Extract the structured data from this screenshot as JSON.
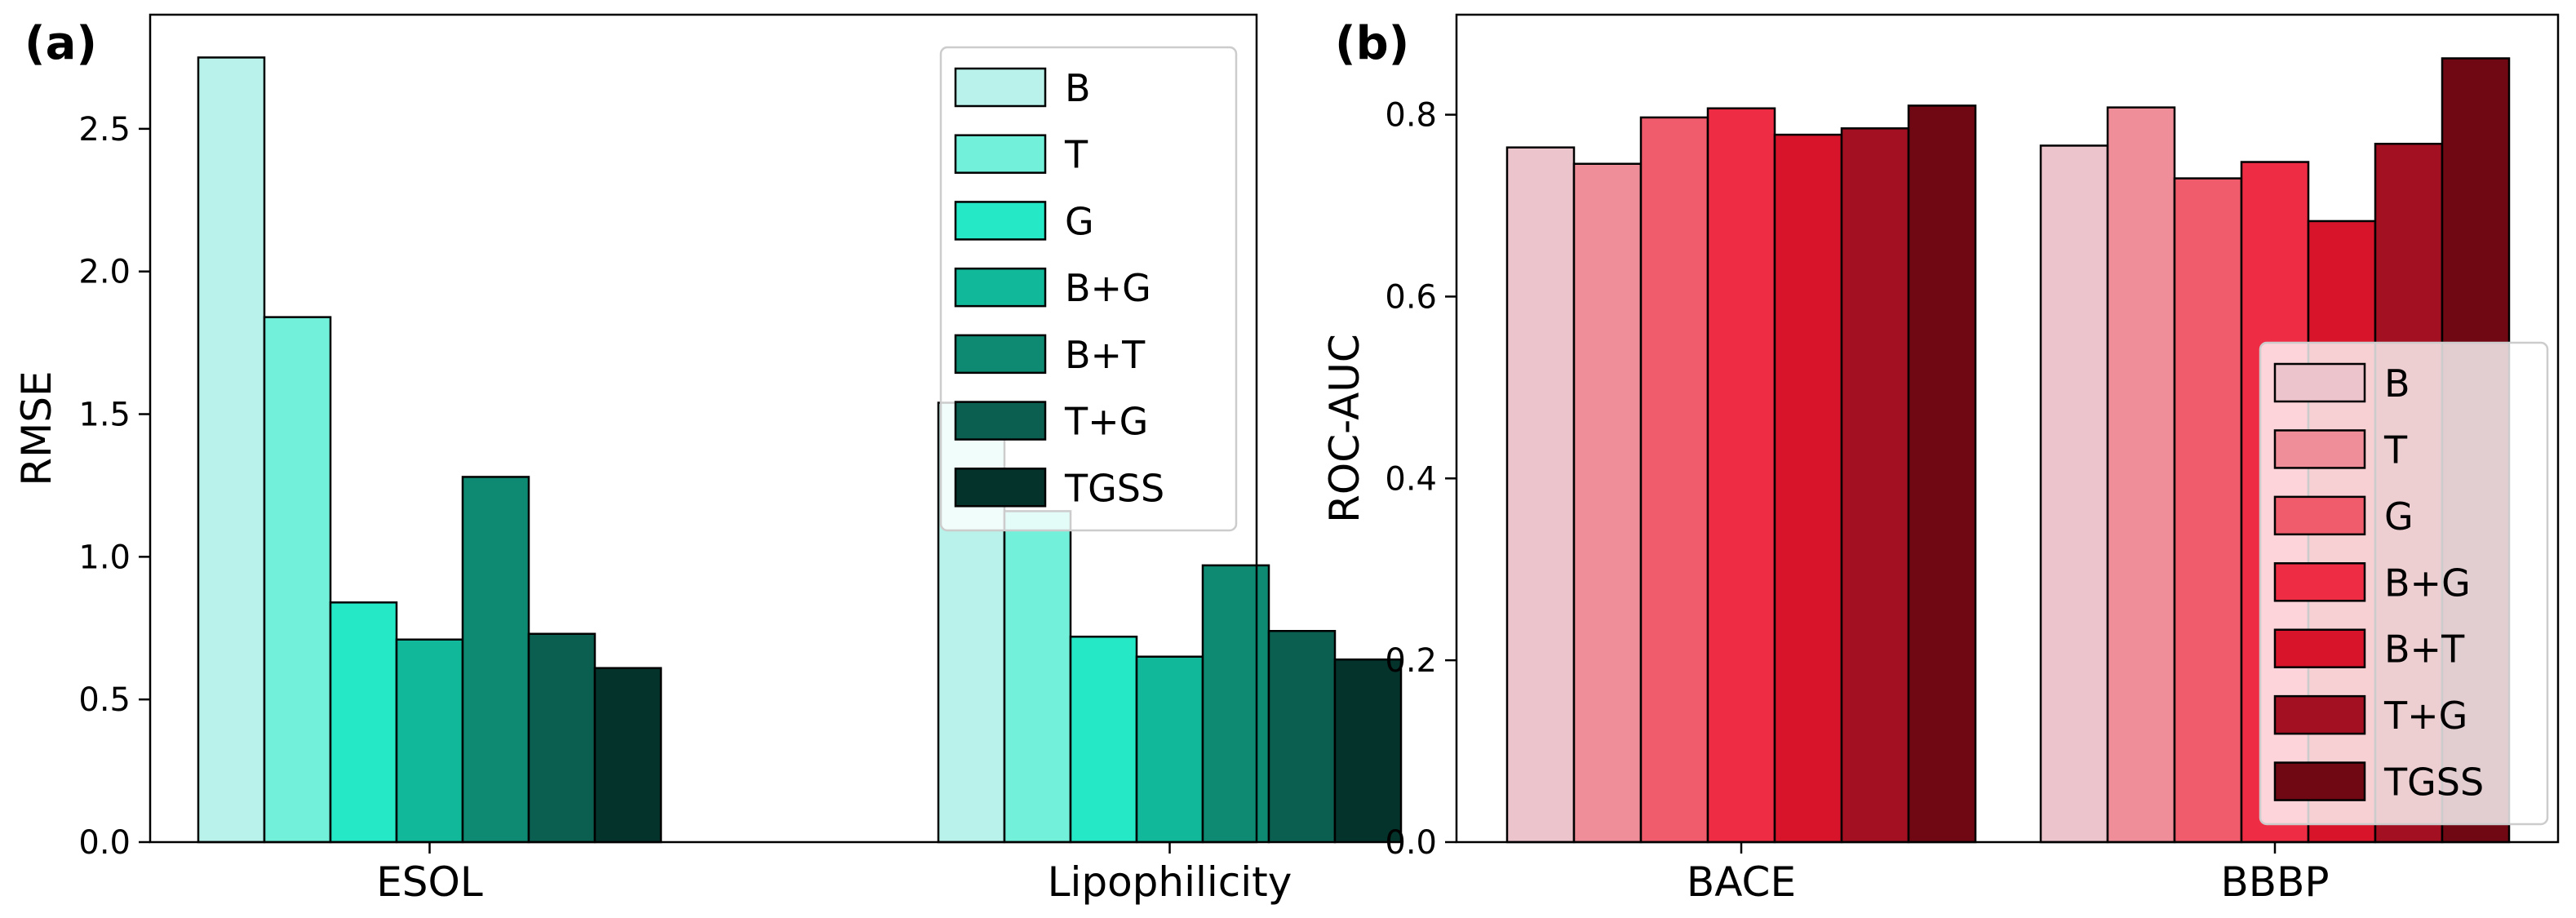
{
  "chart_data": [
    {
      "type": "bar",
      "panel_label": "(a)",
      "title": "",
      "xlabel": "",
      "ylabel": "RMSE",
      "categories": [
        "ESOL",
        "Lipophilicity"
      ],
      "ylim": [
        0,
        2.9
      ],
      "yticks": [
        "0.0",
        "0.5",
        "1.0",
        "1.5",
        "2.0",
        "2.5"
      ],
      "legend_position": "top-right",
      "series": [
        {
          "name": "B",
          "color": "#b8f2ea",
          "values": [
            2.75,
            1.54
          ]
        },
        {
          "name": "T",
          "color": "#72f0da",
          "values": [
            1.84,
            1.16
          ]
        },
        {
          "name": "G",
          "color": "#25e8c6",
          "values": [
            0.84,
            0.72
          ]
        },
        {
          "name": "B+G",
          "color": "#12b89a",
          "values": [
            0.71,
            0.65
          ]
        },
        {
          "name": "B+T",
          "color": "#0e8a72",
          "values": [
            1.28,
            0.97
          ]
        },
        {
          "name": "T+G",
          "color": "#0a5f50",
          "values": [
            0.73,
            0.74
          ]
        },
        {
          "name": "TGSS",
          "color": "#04332c",
          "values": [
            0.61,
            0.64
          ]
        }
      ]
    },
    {
      "type": "bar",
      "panel_label": "(b)",
      "title": "",
      "xlabel": "",
      "ylabel": "ROC-AUC",
      "categories": [
        "BACE",
        "BBBP"
      ],
      "ylim": [
        0,
        0.91
      ],
      "yticks": [
        "0.0",
        "0.2",
        "0.4",
        "0.6",
        "0.8"
      ],
      "legend_position": "lower-right",
      "series": [
        {
          "name": "B",
          "color": "#ecc4cc",
          "values": [
            0.764,
            0.766
          ]
        },
        {
          "name": "T",
          "color": "#ef8e98",
          "values": [
            0.746,
            0.808
          ]
        },
        {
          "name": "G",
          "color": "#f05c6b",
          "values": [
            0.797,
            0.73
          ]
        },
        {
          "name": "B+G",
          "color": "#ee2c43",
          "values": [
            0.807,
            0.748
          ]
        },
        {
          "name": "B+T",
          "color": "#d8142a",
          "values": [
            0.778,
            0.683
          ]
        },
        {
          "name": "T+G",
          "color": "#a31022",
          "values": [
            0.785,
            0.768
          ]
        },
        {
          "name": "TGSS",
          "color": "#700814",
          "values": [
            0.81,
            0.862
          ]
        }
      ]
    }
  ]
}
